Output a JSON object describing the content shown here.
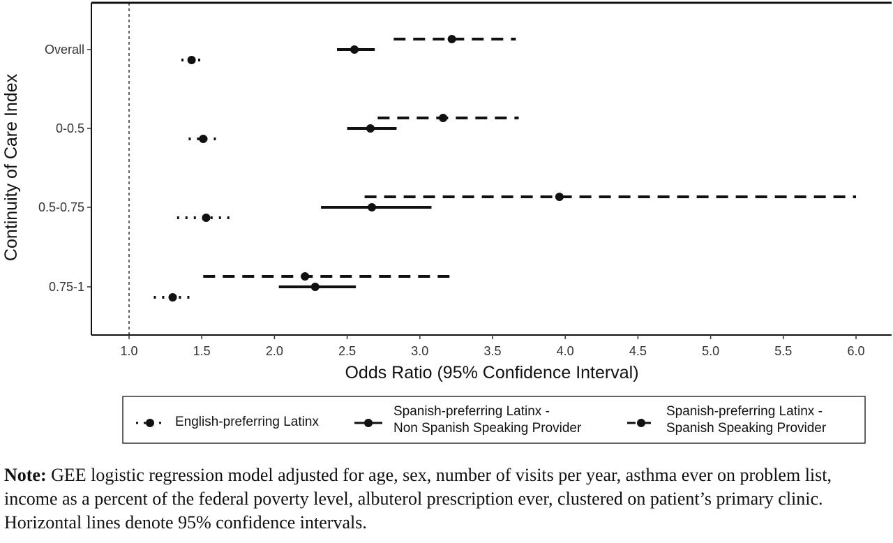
{
  "chart_data": {
    "type": "scatter",
    "subtype": "forest-plot",
    "xlabel": "Odds Ratio (95% Confidence Interval)",
    "ylabel": "Continuity of Care Index",
    "xlim": [
      0.75,
      6.2
    ],
    "x_ticks": [
      "1.0",
      "1.5",
      "2.0",
      "2.5",
      "3.0",
      "3.5",
      "4.0",
      "4.5",
      "5.0",
      "5.5",
      "6.0"
    ],
    "reference_line": 1.0,
    "grid": false,
    "legend_position": "bottom",
    "categories": [
      "Overall",
      "0-0.5",
      "0.5-0.75",
      "0.75-1"
    ],
    "series": [
      {
        "name": "English-preferring Latinx",
        "line_style": "dotted",
        "points": [
          {
            "category": "Overall",
            "or": 1.43,
            "lo": 1.36,
            "hi": 1.51
          },
          {
            "category": "0-0.5",
            "or": 1.51,
            "lo": 1.41,
            "hi": 1.63
          },
          {
            "category": "0.5-0.75",
            "or": 1.53,
            "lo": 1.33,
            "hi": 1.73
          },
          {
            "category": "0.75-1",
            "or": 1.3,
            "lo": 1.17,
            "hi": 1.45
          }
        ]
      },
      {
        "name": "Spanish-preferring Latinx - Non Spanish Speaking Provider",
        "line_style": "solid",
        "points": [
          {
            "category": "Overall",
            "or": 2.55,
            "lo": 2.43,
            "hi": 2.69
          },
          {
            "category": "0-0.5",
            "or": 2.66,
            "lo": 2.5,
            "hi": 2.84
          },
          {
            "category": "0.5-0.75",
            "or": 2.67,
            "lo": 2.32,
            "hi": 3.08
          },
          {
            "category": "0.75-1",
            "or": 2.28,
            "lo": 2.03,
            "hi": 2.56
          }
        ]
      },
      {
        "name": "Spanish-preferring Latinx - Spanish Speaking Provider",
        "line_style": "dashed",
        "points": [
          {
            "category": "Overall",
            "or": 3.22,
            "lo": 2.82,
            "hi": 3.66
          },
          {
            "category": "0-0.5",
            "or": 3.16,
            "lo": 2.71,
            "hi": 3.68
          },
          {
            "category": "0.5-0.75",
            "or": 3.96,
            "lo": 2.62,
            "hi": 6.0
          },
          {
            "category": "0.75-1",
            "or": 2.21,
            "lo": 1.51,
            "hi": 3.25
          }
        ]
      }
    ]
  },
  "legend": {
    "items": [
      {
        "lines": [
          "English-preferring Latinx"
        ]
      },
      {
        "lines": [
          "Spanish-preferring Latinx -",
          "Non Spanish Speaking Provider"
        ]
      },
      {
        "lines": [
          "Spanish-preferring Latinx -",
          "Spanish Speaking Provider"
        ]
      }
    ]
  },
  "note": {
    "label": "Note:",
    "text": " GEE logistic regression model adjusted for age, sex, number of visits per year, asthma ever on problem list, income as a percent of the federal poverty level, albuterol prescription ever, clustered on patient’s primary clinic. Horizontal lines denote 95% confidence intervals."
  }
}
